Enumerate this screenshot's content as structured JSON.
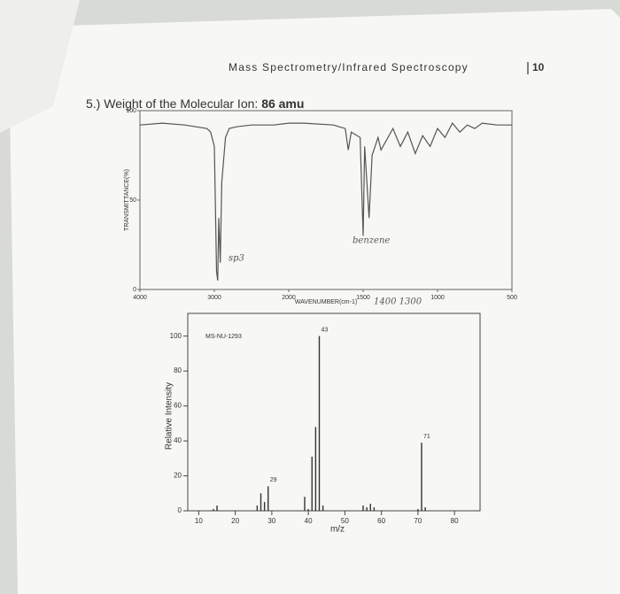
{
  "header": {
    "title": "Mass Spectrometry/Infrared Spectroscopy",
    "page": "10"
  },
  "question": {
    "text": "5.) Weight of the Molecular Ion:",
    "answer": "86 amu"
  },
  "chart_data": [
    {
      "type": "line",
      "ylabel": "TRANSMITTANCE(%)",
      "xlabel": "WAVENUMBER(cm-1)",
      "x": [
        4000,
        3700,
        3400,
        3100,
        3050,
        3000,
        2970,
        2955,
        2940,
        2920,
        2900,
        2870,
        2850,
        2800,
        2700,
        2500,
        2200,
        2000,
        1900,
        1700,
        1620,
        1600,
        1580,
        1520,
        1500,
        1490,
        1460,
        1440,
        1400,
        1380,
        1300,
        1250,
        1200,
        1150,
        1100,
        1050,
        1000,
        950,
        900,
        850,
        800,
        750,
        700,
        600,
        500
      ],
      "series": [
        {
          "color": "#555555",
          "values": [
            92,
            93,
            92,
            90,
            88,
            80,
            10,
            5,
            40,
            15,
            60,
            75,
            85,
            90,
            91,
            92,
            92,
            93,
            93,
            92,
            90,
            78,
            88,
            85,
            30,
            80,
            40,
            75,
            85,
            78,
            90,
            80,
            88,
            76,
            86,
            80,
            90,
            85,
            93,
            88,
            92,
            90,
            93,
            92,
            92
          ]
        }
      ],
      "xlim": [
        4000,
        500
      ],
      "xticks": [
        4000,
        3000,
        2000,
        1500,
        1000,
        500
      ],
      "ylim": [
        0,
        100
      ],
      "yticks": [
        0,
        50,
        100
      ],
      "annotations": [
        "sp3",
        "benzene",
        "1400 1300"
      ]
    },
    {
      "type": "bar",
      "xlabel": "m/z",
      "ylabel": "Relative Intensity",
      "note": "MS-NU-1293",
      "x": [
        14,
        15,
        26,
        27,
        28,
        29,
        39,
        40,
        41,
        42,
        43,
        44,
        55,
        56,
        57,
        58,
        70,
        71,
        72
      ],
      "values": [
        1,
        3,
        3,
        10,
        5,
        14,
        8,
        1,
        31,
        48,
        100,
        3,
        3,
        2,
        4,
        2,
        1,
        39,
        2
      ],
      "color": "#333333",
      "xlim": [
        7,
        87
      ],
      "xticks": [
        10,
        20,
        30,
        40,
        50,
        60,
        70,
        80
      ],
      "ylim": [
        0,
        113
      ],
      "yticks": [
        0,
        20,
        40,
        60,
        80,
        100
      ]
    }
  ]
}
